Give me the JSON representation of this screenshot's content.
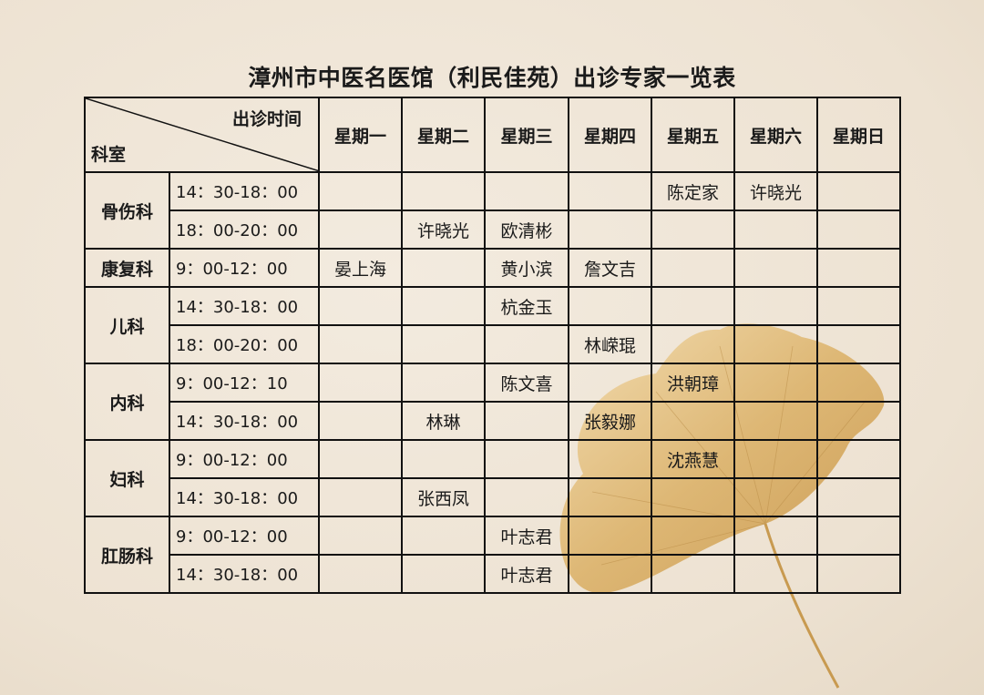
{
  "title": "漳州市中医名医馆（利民佳苑）出诊专家一览表",
  "header": {
    "corner_time": "出诊时间",
    "corner_dept": "科室",
    "days": [
      "星期一",
      "星期二",
      "星期三",
      "星期四",
      "星期五",
      "星期六",
      "星期日"
    ]
  },
  "departments": [
    {
      "name": "骨伤科",
      "rows": [
        {
          "time": "14：30-18：00",
          "cells": [
            "",
            "",
            "",
            "",
            "陈定家",
            "许晓光",
            ""
          ]
        },
        {
          "time": "18：00-20：00",
          "cells": [
            "",
            "许晓光",
            "欧清彬",
            "",
            "",
            "",
            ""
          ]
        }
      ]
    },
    {
      "name": "康复科",
      "rows": [
        {
          "time": "9：00-12：00",
          "cells": [
            "晏上海",
            "",
            "黄小滨",
            "詹文吉",
            "",
            "",
            ""
          ]
        }
      ]
    },
    {
      "name": "儿科",
      "rows": [
        {
          "time": "14：30-18：00",
          "cells": [
            "",
            "",
            "杭金玉",
            "",
            "",
            "",
            ""
          ]
        },
        {
          "time": "18：00-20：00",
          "cells": [
            "",
            "",
            "",
            "林嵘琨",
            "",
            "",
            ""
          ]
        }
      ]
    },
    {
      "name": "内科",
      "rows": [
        {
          "time": "9：00-12：10",
          "cells": [
            "",
            "",
            "陈文喜",
            "",
            "洪朝璋",
            "",
            ""
          ]
        },
        {
          "time": "14：30-18：00",
          "cells": [
            "",
            "林琳",
            "",
            "张毅娜",
            "",
            "",
            ""
          ]
        }
      ]
    },
    {
      "name": "妇科",
      "rows": [
        {
          "time": "9：00-12：00",
          "cells": [
            "",
            "",
            "",
            "",
            "沈燕慧",
            "",
            ""
          ]
        },
        {
          "time": "14：30-18：00",
          "cells": [
            "",
            "张西凤",
            "",
            "",
            "",
            "",
            ""
          ]
        }
      ]
    },
    {
      "name": "肛肠科",
      "rows": [
        {
          "time": "9：00-12：00",
          "cells": [
            "",
            "",
            "叶志君",
            "",
            "",
            "",
            ""
          ]
        },
        {
          "time": "14：30-18：00",
          "cells": [
            "",
            "",
            "叶志君",
            "",
            "",
            "",
            ""
          ]
        }
      ]
    }
  ],
  "colors": {
    "background": "#efe5d6",
    "leaf": "#d9b06a",
    "grid": "#111111"
  }
}
